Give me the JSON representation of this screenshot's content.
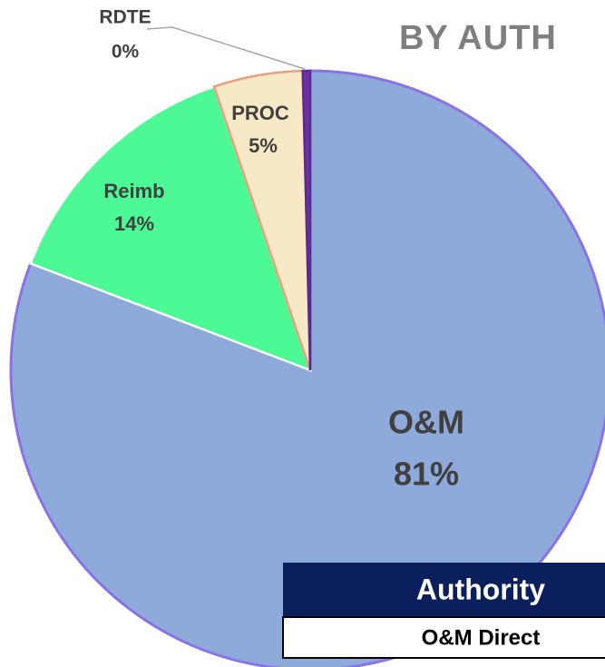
{
  "chart_data": {
    "type": "pie",
    "title": "BY AUTH",
    "categories": [
      "O&M",
      "Reimb",
      "PROC",
      "RDTE"
    ],
    "values": [
      80.8,
      14.0,
      4.8,
      0.4
    ],
    "value_labels": [
      "81%",
      "14%",
      "5%",
      "0%"
    ],
    "colors": [
      "#8eaadb",
      "#4cf994",
      "#f7e8c6",
      "#7030a0"
    ],
    "edge_colors": [
      "#8a72e6",
      "#ffffff",
      "#e6a080",
      "#5a2a90"
    ]
  },
  "table": {
    "header": "Authority",
    "rows": [
      [
        "O&M Direct"
      ]
    ]
  }
}
